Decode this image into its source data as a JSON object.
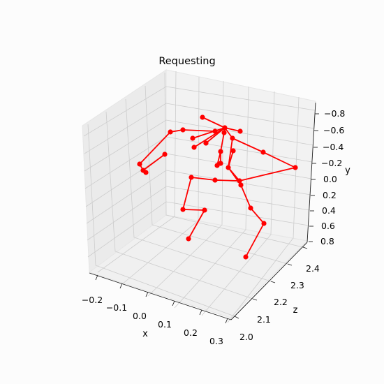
{
  "chart_data": {
    "type": "scatter",
    "title": "Requesting",
    "xlabel": "x",
    "ylabel": "y",
    "zlabel": "z",
    "x_ticks": [
      "−0.2",
      "−0.1",
      "0.0",
      "0.1",
      "0.2",
      "0.3"
    ],
    "y_ticks": [
      "−0.8",
      "−0.6",
      "−0.4",
      "−0.2",
      "0.0",
      "0.2",
      "0.4",
      "0.6",
      "0.8"
    ],
    "z_ticks": [
      "2.0",
      "2.1",
      "2.2",
      "2.3",
      "2.4"
    ],
    "grid": true,
    "series": [
      {
        "color": "#ff0000",
        "marker": "circle",
        "skeleton": true,
        "point_count": 29
      }
    ]
  }
}
